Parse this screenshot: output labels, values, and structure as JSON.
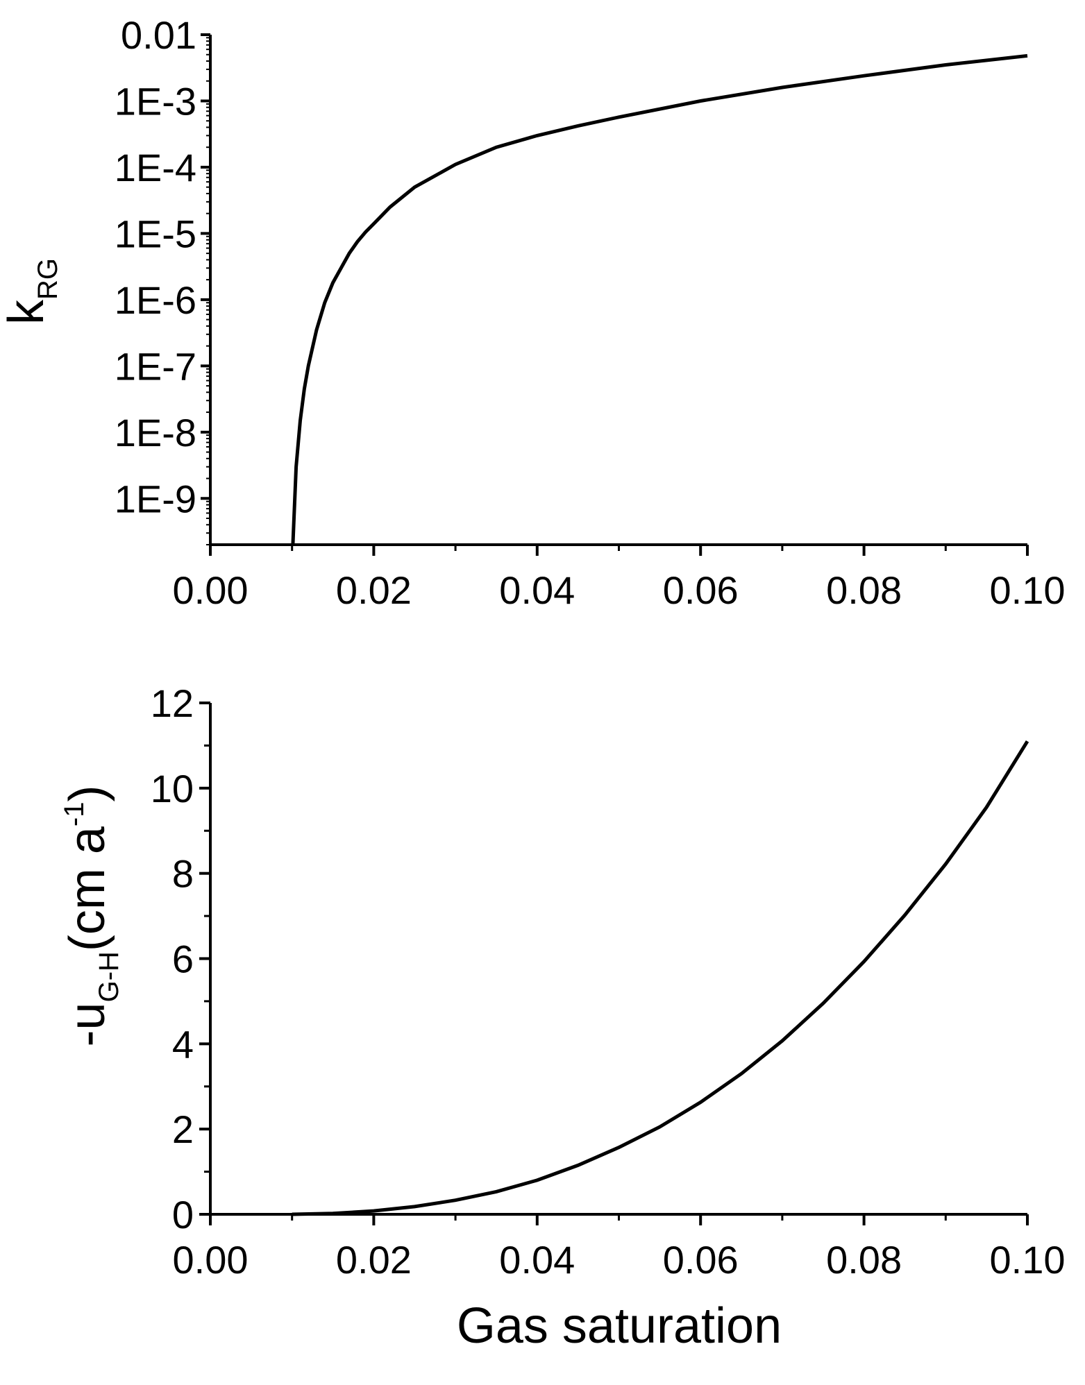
{
  "chart_data": [
    {
      "type": "line",
      "ylabel": "k",
      "ylabel_subscript": "RG",
      "yscale": "log",
      "xlim": [
        0.0,
        0.1
      ],
      "ylim": [
        2e-10,
        0.01
      ],
      "x_ticks": [
        "0.00",
        "0.02",
        "0.04",
        "0.06",
        "0.08",
        "0.10"
      ],
      "x_tick_values": [
        0.0,
        0.02,
        0.04,
        0.06,
        0.08,
        0.1
      ],
      "y_ticks": [
        "0.01",
        "1E-3",
        "1E-4",
        "1E-5",
        "1E-6",
        "1E-7",
        "1E-8",
        "1E-9"
      ],
      "y_tick_values": [
        0.01,
        0.001,
        0.0001,
        1e-05,
        1e-06,
        1e-07,
        1e-08,
        1e-09
      ],
      "grid": false,
      "series": [
        {
          "color": "#000000",
          "x": [
            0.0101,
            0.0105,
            0.011,
            0.0115,
            0.012,
            0.013,
            0.014,
            0.015,
            0.016,
            0.017,
            0.018,
            0.019,
            0.02,
            0.022,
            0.025,
            0.03,
            0.035,
            0.04,
            0.045,
            0.05,
            0.06,
            0.07,
            0.08,
            0.09,
            0.1
          ],
          "y": [
            2e-10,
            3e-09,
            1.5e-08,
            4.5e-08,
            1e-07,
            3.5e-07,
            9e-07,
            1.8e-06,
            3e-06,
            5e-06,
            7.5e-06,
            1.05e-05,
            1.4e-05,
            2.5e-05,
            5e-05,
            0.00011,
            0.0002,
            0.0003,
            0.00042,
            0.00057,
            0.001,
            0.0016,
            0.0024,
            0.0035,
            0.0048
          ]
        }
      ]
    },
    {
      "type": "line",
      "ylabel": "-u",
      "ylabel_subscript": "G-H",
      "ylabel_suffix": "(cm a",
      "ylabel_superscript": "-1",
      "ylabel_close": ")",
      "xlabel": "Gas saturation",
      "xlim": [
        0.0,
        0.1
      ],
      "ylim": [
        0,
        12
      ],
      "x_ticks": [
        "0.00",
        "0.02",
        "0.04",
        "0.06",
        "0.08",
        "0.10"
      ],
      "x_tick_values": [
        0.0,
        0.02,
        0.04,
        0.06,
        0.08,
        0.1
      ],
      "y_ticks": [
        "0",
        "2",
        "4",
        "6",
        "8",
        "10",
        "12"
      ],
      "y_tick_values": [
        0,
        2,
        4,
        6,
        8,
        10,
        12
      ],
      "grid": false,
      "series": [
        {
          "color": "#000000",
          "x": [
            0.01,
            0.015,
            0.02,
            0.025,
            0.03,
            0.035,
            0.04,
            0.045,
            0.05,
            0.055,
            0.06,
            0.065,
            0.07,
            0.075,
            0.08,
            0.085,
            0.09,
            0.095,
            0.1
          ],
          "y": [
            0.0,
            0.02,
            0.08,
            0.18,
            0.33,
            0.53,
            0.8,
            1.15,
            1.57,
            2.05,
            2.63,
            3.3,
            4.07,
            4.95,
            5.93,
            7.02,
            8.22,
            9.55,
            11.1
          ]
        }
      ]
    }
  ]
}
